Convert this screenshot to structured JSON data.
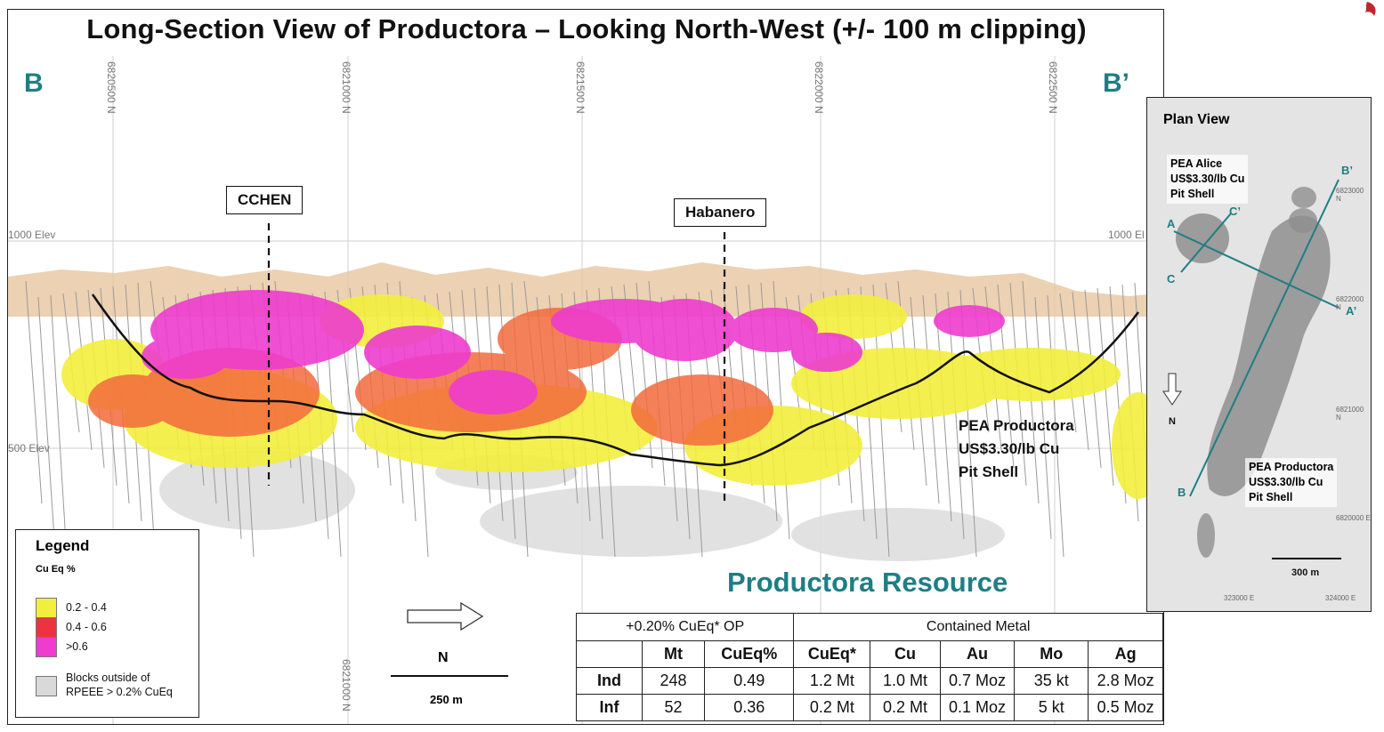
{
  "title": "Long-Section View of Productora – Looking North-West (+/- 100 m clipping)",
  "section_labels": {
    "start": "B",
    "end": "B’"
  },
  "northings": [
    "6820500 N",
    "6821000 N",
    "6821500 N",
    "6822000 N",
    "6822500 N"
  ],
  "bottom_northing": "6821000 N",
  "elevations": {
    "upper_left": "1000 Elev",
    "upper_right": "1000 El",
    "lower_left": "500 Elev"
  },
  "zones": {
    "cchen": "CCHEN",
    "habanero": "Habanero"
  },
  "pit_shell_label": [
    "PEA Productora",
    "US$3.30/lb Cu",
    "Pit Shell"
  ],
  "legend": {
    "title": "Legend",
    "subtitle": "Cu Eq %",
    "items": [
      {
        "label": "0.2 - 0.4",
        "color": "#f2ee3c"
      },
      {
        "label": "0.4 - 0.6",
        "color": "#ee3340"
      },
      {
        "label": ">0.6",
        "color": "#ee3ccf"
      },
      {
        "label": "Blocks outside of RPEEE > 0.2% CuEq",
        "color": "#d9d9d9"
      }
    ]
  },
  "north_label": "N",
  "scale_label": "250 m",
  "resource": {
    "title": "Productora Resource",
    "group_left": "+0.20% CuEq* OP",
    "group_right": "Contained Metal",
    "columns": [
      "Mt",
      "CuEq%",
      "CuEq*",
      "Cu",
      "Au",
      "Mo",
      "Ag"
    ],
    "rows": [
      {
        "label": "Ind",
        "values": [
          "248",
          "0.49",
          "1.2 Mt",
          "1.0 Mt",
          "0.7 Moz",
          "35 kt",
          "2.8 Moz"
        ]
      },
      {
        "label": "Inf",
        "values": [
          "52",
          "0.36",
          "0.2 Mt",
          "0.2 Mt",
          "0.1 Moz",
          "5 kt",
          "0.5 Moz"
        ]
      }
    ]
  },
  "plan_view": {
    "title": "Plan View",
    "alice_label": [
      "PEA Alice",
      "US$3.30/lb Cu",
      "Pit Shell"
    ],
    "productora_label": [
      "PEA Productora",
      "US$3.30/lb Cu",
      "Pit Shell"
    ],
    "sections": {
      "a": "A",
      "a_prime": "A’",
      "b": "B",
      "b_prime": "B’",
      "c": "C",
      "c_prime": "C’"
    },
    "north": "N",
    "scale": "300 m",
    "northings": [
      "6823000 N",
      "6822000 N",
      "6821000 N",
      "6820000 E"
    ],
    "eastings": [
      "323000 E",
      "324000 E"
    ]
  },
  "colors": {
    "accent": "#1f7e83",
    "yellow": "#f2ee3c",
    "red": "#ee3340",
    "magenta": "#ee3ccf",
    "topo": "#e9c9a4"
  }
}
